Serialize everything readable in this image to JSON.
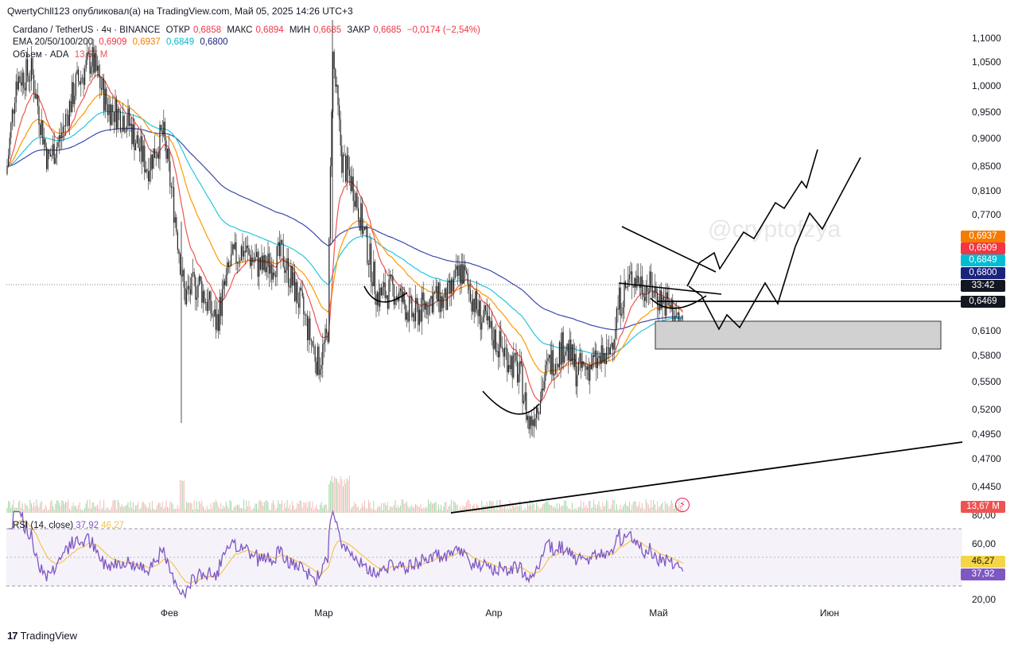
{
  "header": {
    "published": "QwertyChll123 опубликовал(а) на TradingView.com, Май 05, 2025 14:26 UTC+3"
  },
  "legend": {
    "symbol_line": {
      "symbol": "Cardano / TetherUS · 4ч · BINANCE",
      "open_label": "ОТКР",
      "open": "0,6858",
      "high_label": "МАКС",
      "high": "0,6894",
      "low_label": "МИН",
      "low": "0,6685",
      "close_label": "ЗАКР",
      "close": "0,6685",
      "change": "−0,0174 (−2,54%)"
    },
    "ema_line": {
      "name": "EMA 20/50/100/200",
      "v20": "0,6909",
      "v50": "0,6937",
      "v100": "0,6849",
      "v200": "0,6800"
    },
    "volume_line": {
      "name": "Объем · ADA",
      "value": "13,67 M"
    }
  },
  "price_axis": {
    "ticks": [
      "1,1000",
      "1,0500",
      "1,0000",
      "0,9500",
      "0,9000",
      "0,8500",
      "0,8100",
      "0,7700",
      "0,6100",
      "0,5800",
      "0,5500",
      "0,5200",
      "0,4950",
      "0,4700",
      "0,4450"
    ],
    "tags": [
      {
        "label": "0,6937",
        "color": "#f57c00"
      },
      {
        "label": "0,6909",
        "color": "#f23645"
      },
      {
        "label": "0,6849",
        "color": "#00bcd4"
      },
      {
        "label": "0,6800",
        "color": "#1a237e"
      },
      {
        "label": "33:42",
        "color": "#131722"
      },
      {
        "label": "0,6469",
        "color": "#131722"
      }
    ],
    "volume_tag": {
      "label": "13,67 M",
      "color": "#ef5350"
    }
  },
  "rsi": {
    "name": "RSI (14, close)",
    "value": "37,92",
    "ma": "46,27",
    "ticks": [
      "80,00",
      "60,00",
      "20,00"
    ],
    "tags": [
      {
        "label": "46,27",
        "color": "#f5d547",
        "text": "#131722"
      },
      {
        "label": "37,92",
        "color": "#7e57c2",
        "text": "#ffffff"
      }
    ]
  },
  "time_axis": {
    "labels": [
      "Фев",
      "Мар",
      "Апр",
      "Май",
      "Июн"
    ]
  },
  "watermark": "@cryptofzya",
  "footer": {
    "logo_mark": "17",
    "brand": "TradingView"
  },
  "chart_data": {
    "type": "line",
    "instrument": "ADA/USDT",
    "timeframe": "4h",
    "ylim": [
      0.44,
      1.11
    ],
    "series": [
      {
        "name": "ADA",
        "x": [
          "Jan 10",
          "Jan 20",
          "Jan 31",
          "Feb 3",
          "Feb 15",
          "Feb 27",
          "Mar 2",
          "Mar 11",
          "Mar 25",
          "Apr 7",
          "Apr 20",
          "Apr 26",
          "May 5"
        ],
        "values": [
          1.05,
          0.98,
          0.94,
          0.74,
          0.78,
          0.62,
          1.1,
          0.68,
          0.74,
          0.52,
          0.64,
          0.74,
          0.6685
        ]
      }
    ],
    "levels": {
      "support": 0.6469,
      "zone": [
        0.585,
        0.625
      ]
    },
    "rsi_ylim": [
      20,
      80
    ]
  }
}
